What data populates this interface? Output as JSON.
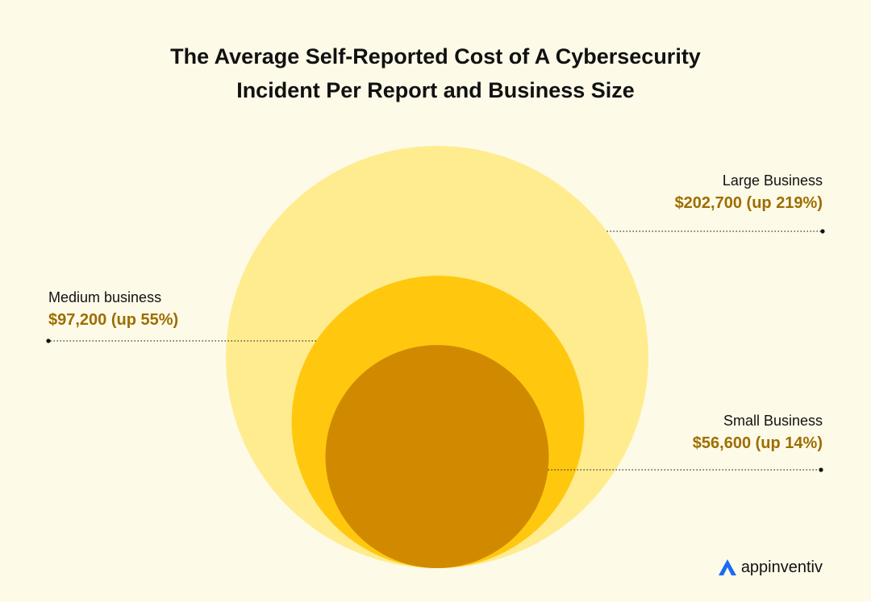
{
  "chart_data": {
    "type": "bubble",
    "title": "The Average Self-Reported Cost of A Cybersecurity Incident Per Report and Business Size",
    "title_lines": [
      "The Average Self-Reported Cost of A Cybersecurity",
      "Incident Per Report and Business Size"
    ],
    "series": [
      {
        "name": "Large Business",
        "value": 202700,
        "label": "$202,700 (up 219%)",
        "change_pct": 219,
        "color": "#FFEC8F"
      },
      {
        "name": "Medium business",
        "value": 97200,
        "label": "$97,200 (up 55%)",
        "change_pct": 55,
        "color": "#FFC80F"
      },
      {
        "name": "Small Business",
        "value": 56600,
        "label": "$56,600 (up 14%)",
        "change_pct": 14,
        "color": "#D18A00"
      }
    ],
    "value_label_color": "#9C6E00",
    "leader_line_color": "#333333"
  },
  "branding": {
    "logo_text": "appinventiv",
    "logo_icon": "triangle-a-icon",
    "logo_color": "#1B6BF5"
  }
}
